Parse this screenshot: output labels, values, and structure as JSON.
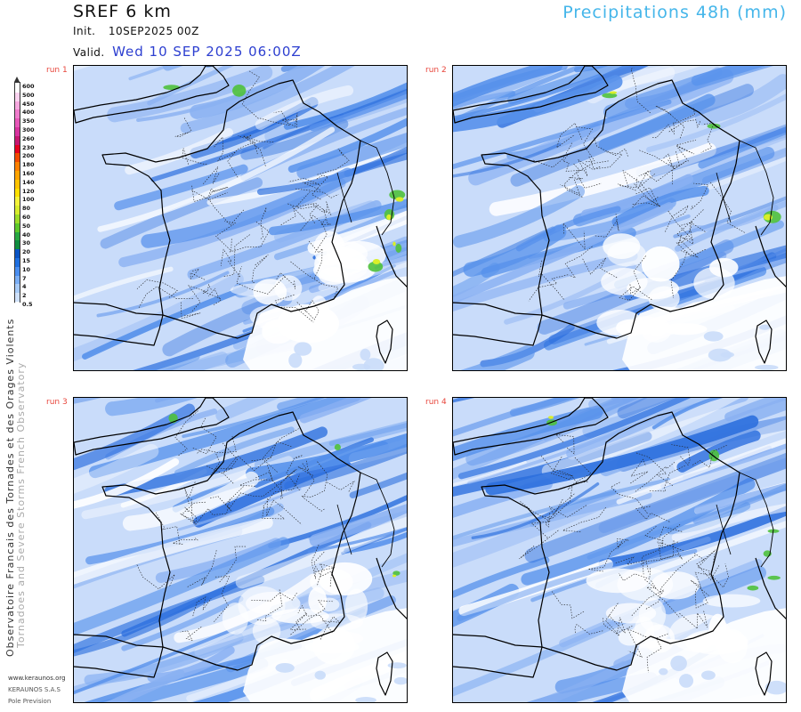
{
  "header": {
    "title": "SREF 6 km",
    "init_label": "Init.",
    "init_value": "10SEP2025 00Z",
    "valid_label": "Valid.",
    "valid_value": "Wed 10 SEP 2025 06:00Z",
    "parameter": "Precipitations 48h (mm)"
  },
  "panels": [
    {
      "label": "run 1"
    },
    {
      "label": "run 2"
    },
    {
      "label": "run 3"
    },
    {
      "label": "run 4"
    }
  ],
  "legend": {
    "levels": [
      "600",
      "500",
      "450",
      "400",
      "350",
      "300",
      "260",
      "230",
      "200",
      "180",
      "160",
      "140",
      "120",
      "100",
      "80",
      "60",
      "50",
      "40",
      "30",
      "20",
      "15",
      "10",
      "7",
      "4",
      "2",
      "0.5"
    ],
    "colors": [
      "#ffffff",
      "#fbd3ef",
      "#f7a8df",
      "#f07ccc",
      "#e757b8",
      "#d8339f",
      "#c61670",
      "#e6001e",
      "#f24a00",
      "#ff8000",
      "#ffa300",
      "#ffc300",
      "#ffe000",
      "#f5f33a",
      "#d7ec2c",
      "#9cdc27",
      "#5cc82a",
      "#27a742",
      "#0f8d3f",
      "#0a54c4",
      "#1e6fe0",
      "#4a8ef0",
      "#7aaef5",
      "#a8cbf8",
      "#cfe1fb",
      "#ffffff"
    ]
  },
  "map_colors": {
    "light": "#c9dcfa",
    "mid": "#8ab1f2",
    "blue": "#5590eb",
    "deep": "#2c6fde",
    "green": "#4fc13c",
    "yellow": "#d9ef2a"
  },
  "side_text": {
    "line1": "Observatoire Francais des Tornades et des Orages Violents",
    "line2": "Tornadoes and Severe Storms French Observatory"
  },
  "footer": {
    "website": "www.keraunos.org",
    "company": "KERAUNOS S.A.S",
    "division": "Pole Prevision"
  }
}
